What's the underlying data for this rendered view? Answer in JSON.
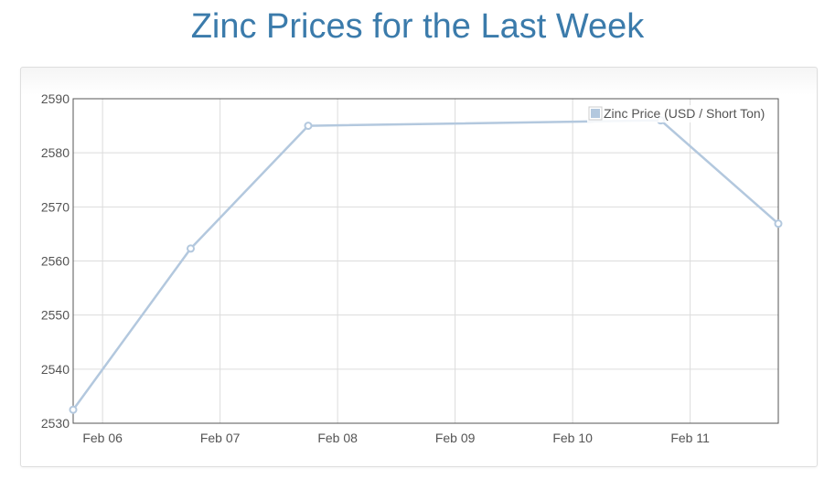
{
  "page": {
    "title": "Zinc Prices for the Last Week"
  },
  "colors": {
    "title": "#3b7bab",
    "series": "#b3c8de",
    "grid": "#dcdcdc",
    "axis": "#545454"
  },
  "chart_data": {
    "type": "line",
    "title": "",
    "xlabel": "",
    "ylabel": "",
    "x_ticks": [
      "Feb 06",
      "Feb 07",
      "Feb 08",
      "Feb 09",
      "Feb 10",
      "Feb 11"
    ],
    "x_tick_days": [
      6,
      7,
      8,
      9,
      10,
      11
    ],
    "xlim": [
      5.75,
      11.75
    ],
    "ylim": [
      2530,
      2590
    ],
    "y_ticks": [
      "2530",
      "2540",
      "2550",
      "2560",
      "2570",
      "2580",
      "2590"
    ],
    "grid": true,
    "legend_position": "top-right",
    "series": [
      {
        "name": "Zinc Price (USD / Short Ton)",
        "x": [
          5.75,
          6.75,
          7.75,
          10.75,
          11.75
        ],
        "values": [
          2532.5,
          2562.3,
          2585.0,
          2586.0,
          2566.9
        ]
      }
    ]
  }
}
